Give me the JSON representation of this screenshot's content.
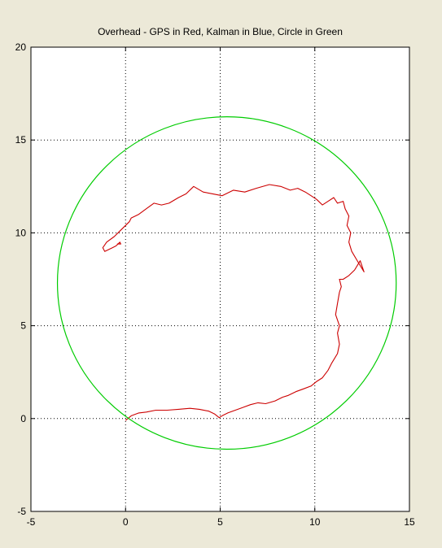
{
  "figure": {
    "background": "#ece9d8",
    "axes_background": "#ffffff"
  },
  "chart_data": {
    "type": "line",
    "title": "Overhead - GPS in Red, Kalman in Blue, Circle in Green",
    "xlabel": "",
    "ylabel": "",
    "xlim": [
      -5,
      15
    ],
    "ylim": [
      -5,
      20
    ],
    "xticks": [
      -5,
      0,
      5,
      10,
      15
    ],
    "yticks": [
      -5,
      0,
      5,
      10,
      15,
      20
    ],
    "xtick_labels": [
      "-5",
      "0",
      "5",
      "10",
      "15"
    ],
    "ytick_labels": [
      "-5",
      "0",
      "5",
      "10",
      "15",
      "20"
    ],
    "grid": true,
    "grid_style": "dotted",
    "series": [
      {
        "color": "#cc0000",
        "x": [
          0.0,
          0.3,
          0.7,
          1.1,
          1.6,
          2.2,
          2.8,
          3.4,
          3.9,
          4.4,
          4.7,
          4.95,
          5.1,
          5.4,
          5.8,
          6.2,
          6.6,
          7.0,
          7.4,
          7.9,
          8.3,
          8.6,
          9.0,
          9.4,
          9.8,
          10.1,
          10.4,
          10.7,
          10.9,
          11.2,
          11.3,
          11.2,
          11.3,
          11.1,
          11.2,
          11.3,
          11.4,
          11.3,
          11.5,
          11.8,
          12.1,
          12.4,
          12.6,
          12.3,
          11.95,
          11.8,
          11.9,
          11.7,
          11.8,
          11.6,
          11.5,
          11.2,
          11.0,
          10.7,
          10.4,
          10.1,
          9.8,
          9.5,
          9.1,
          8.7,
          8.2,
          7.6,
          6.9,
          6.3,
          5.7,
          5.1,
          4.6,
          4.1,
          3.6,
          3.2,
          2.8,
          2.3,
          1.9,
          1.5,
          1.1,
          0.7,
          0.3,
          0.2,
          -0.2,
          -0.6,
          -1.0,
          -1.2,
          -1.1,
          -0.9,
          -0.7,
          -0.5,
          -0.3,
          -0.25,
          -0.45
        ],
        "y": [
          -0.1,
          0.15,
          0.3,
          0.35,
          0.45,
          0.45,
          0.5,
          0.55,
          0.5,
          0.4,
          0.25,
          0.05,
          0.15,
          0.3,
          0.45,
          0.6,
          0.75,
          0.85,
          0.8,
          0.95,
          1.15,
          1.25,
          1.45,
          1.6,
          1.75,
          2.0,
          2.2,
          2.6,
          3.0,
          3.5,
          4.0,
          4.6,
          5.0,
          5.6,
          6.2,
          6.8,
          7.1,
          7.5,
          7.5,
          7.7,
          8.0,
          8.5,
          7.9,
          8.4,
          9.0,
          9.5,
          10.0,
          10.4,
          10.9,
          11.3,
          11.7,
          11.6,
          11.9,
          11.7,
          11.5,
          11.8,
          12.0,
          12.2,
          12.4,
          12.3,
          12.5,
          12.6,
          12.4,
          12.2,
          12.3,
          12.0,
          12.1,
          12.2,
          12.5,
          12.1,
          11.9,
          11.6,
          11.5,
          11.6,
          11.3,
          11.0,
          10.8,
          10.6,
          10.2,
          9.8,
          9.5,
          9.2,
          9.0,
          9.1,
          9.2,
          9.3,
          9.5,
          9.4,
          9.4
        ]
      },
      {
        "type": "circle",
        "color": "#00cc00",
        "center": [
          5.35,
          7.3
        ],
        "radius": 8.95
      }
    ]
  }
}
